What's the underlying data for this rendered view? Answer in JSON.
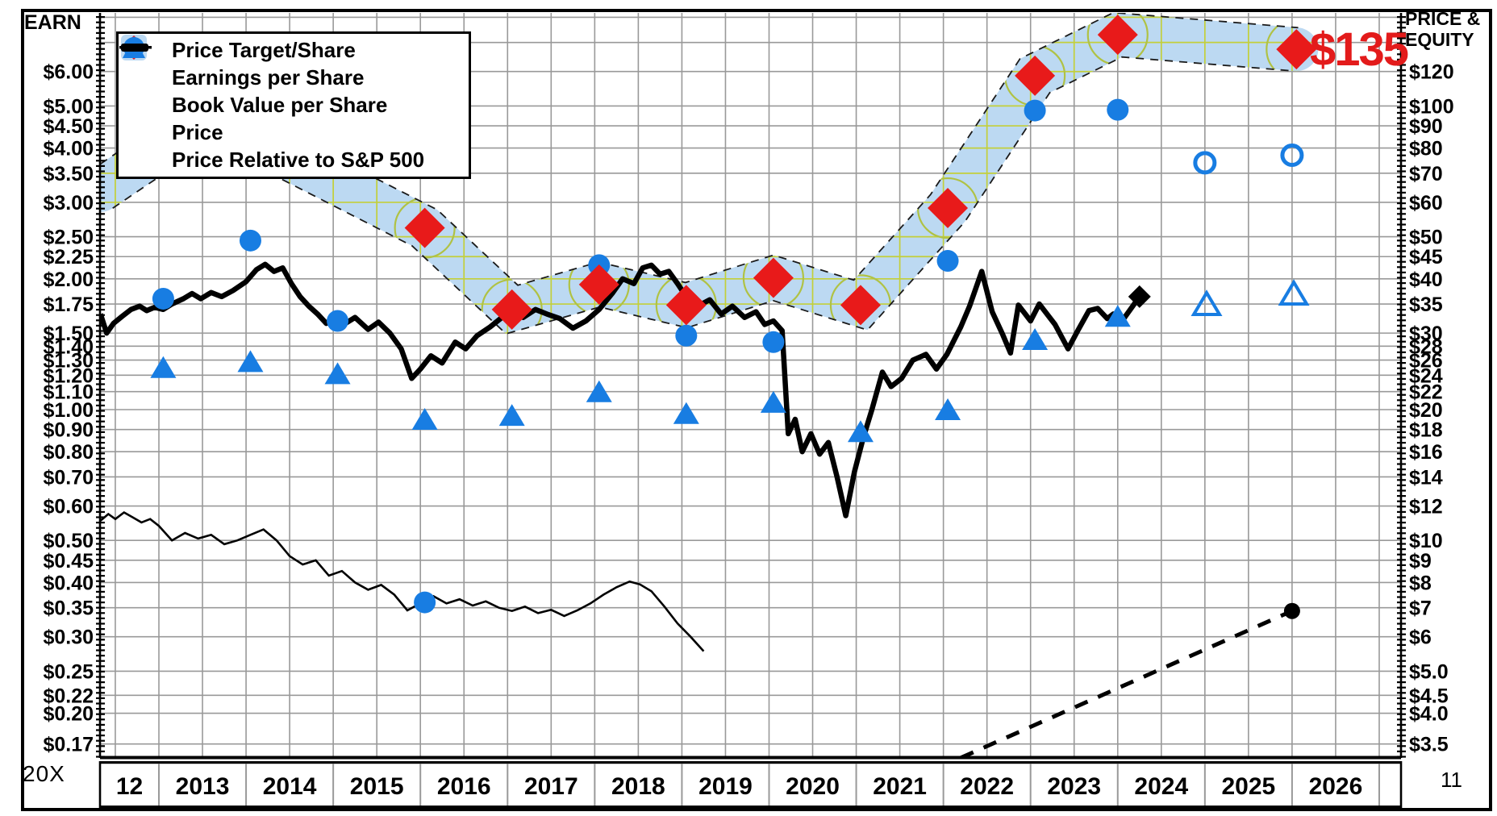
{
  "figure": {
    "left_axis_title": "EARN",
    "right_axis_title_line1": "PRICE &",
    "right_axis_title_line2": "EQUITY",
    "price_target_callout": "$135",
    "multiplier_label": "20X",
    "page_number": "11"
  },
  "legend": {
    "items": [
      {
        "icon": "price-target-diamond-icon",
        "label": "Price Target/Share"
      },
      {
        "icon": "eps-circle-icon",
        "label": "Earnings per Share"
      },
      {
        "icon": "book-value-triangle-icon",
        "label": "Book Value per Share"
      },
      {
        "icon": "price-line-icon",
        "label": "Price"
      },
      {
        "icon": "relative-line-icon",
        "label": "Price Relative to S&P 500"
      }
    ]
  },
  "chart_data": {
    "type": "line",
    "title": "",
    "scale": "log",
    "grid": true,
    "x_axis": {
      "labels": [
        "12",
        "2013",
        "2014",
        "2015",
        "2016",
        "2017",
        "2018",
        "2019",
        "2020",
        "2021",
        "2022",
        "2023",
        "2024",
        "2025",
        "2026"
      ],
      "start_year": 2012,
      "end_year": 2027
    },
    "left_axis": {
      "title": "EARN",
      "range": [
        0.158,
        8.2
      ],
      "tick_values": [
        6.0,
        5.0,
        4.5,
        4.0,
        3.5,
        3.0,
        2.5,
        2.25,
        2.0,
        1.75,
        1.5,
        1.4,
        1.3,
        1.2,
        1.1,
        1.0,
        0.9,
        0.8,
        0.7,
        0.6,
        0.5,
        0.45,
        0.4,
        0.35,
        0.3,
        0.25,
        0.22,
        0.2,
        0.17
      ],
      "tick_labels": [
        "$6.00",
        "$5.00",
        "$4.50",
        "$4.00",
        "$3.50",
        "$3.00",
        "$2.50",
        "$2.25",
        "$2.00",
        "$1.75",
        "$1.50",
        "$1.40",
        "$1.30",
        "$1.20",
        "$1.10",
        "$1.00",
        "$0.90",
        "$0.80",
        "$0.70",
        "$0.60",
        "$0.50",
        "$0.45",
        "$0.40",
        "$0.35",
        "$0.30",
        "$0.25",
        "$0.22",
        "$0.20",
        "$0.17"
      ]
    },
    "right_axis": {
      "title": "PRICE & EQUITY",
      "tick_labels": [
        "$120",
        "$100",
        "$90",
        "$80",
        "$70",
        "$60",
        "$50",
        "$45",
        "$40",
        "$35",
        "$30",
        "$28",
        "$26",
        "$24",
        "$22",
        "$20",
        "$18",
        "$16",
        "$14",
        "$12",
        "$10",
        "$9",
        "$8",
        "$7",
        "$6",
        "$5.0",
        "$4.5",
        "$4.0",
        "$3.5"
      ]
    },
    "gridline_values": [
      8,
      7,
      6,
      5,
      4.5,
      4,
      3.5,
      3,
      2.5,
      2.25,
      2,
      1.75,
      1.5,
      1.4,
      1.3,
      1.2,
      1.1,
      1,
      0.9,
      0.8,
      0.7,
      0.6,
      0.5,
      0.45,
      0.4,
      0.35,
      0.3,
      0.25,
      0.22,
      0.2,
      0.17
    ],
    "colors": {
      "band": "#bcd9f2",
      "band_grid": "#c3cf3a",
      "halo": "#b0c244",
      "marker_blue": "#187de2",
      "marker_red": "#e81a1a",
      "grid": "#999999",
      "line_black": "#000000",
      "callout_red": "#e31b1b"
    },
    "series": {
      "price_target_band": {
        "points": [
          [
            2012.33,
            3.2
          ],
          [
            2013.2,
            4.2
          ],
          [
            2014.05,
            4.2
          ],
          [
            2016.05,
            2.62
          ],
          [
            2017.05,
            1.7
          ],
          [
            2018.05,
            1.94
          ],
          [
            2019.05,
            1.74
          ],
          [
            2020.05,
            2.01
          ],
          [
            2021.05,
            1.74
          ],
          [
            2022.05,
            2.91
          ],
          [
            2023.05,
            5.87
          ],
          [
            2024.0,
            7.29
          ],
          [
            2026.05,
            6.75
          ]
        ]
      },
      "price_target": {
        "points": [
          [
            2016.05,
            2.62
          ],
          [
            2017.05,
            1.7
          ],
          [
            2018.05,
            1.94
          ],
          [
            2019.05,
            1.74
          ],
          [
            2020.05,
            2.01
          ],
          [
            2021.05,
            1.74
          ],
          [
            2022.05,
            2.91
          ],
          [
            2023.05,
            5.87
          ],
          [
            2024.0,
            7.29
          ],
          [
            2026.05,
            6.75
          ]
        ]
      },
      "earnings_per_share": {
        "points": [
          [
            2013.05,
            1.8
          ],
          [
            2014.05,
            2.45
          ],
          [
            2015.05,
            1.6
          ],
          [
            2016.05,
            0.36
          ],
          [
            2017.05,
            1.7
          ],
          [
            2018.05,
            2.15
          ],
          [
            2019.05,
            1.48
          ],
          [
            2020.05,
            1.43
          ],
          [
            2022.05,
            2.2
          ],
          [
            2023.05,
            4.88
          ],
          [
            2024.0,
            4.9
          ]
        ],
        "estimates": [
          [
            2025.0,
            3.7
          ],
          [
            2026.0,
            3.85
          ]
        ]
      },
      "book_value": {
        "points": [
          [
            2013.05,
            1.25
          ],
          [
            2014.05,
            1.29
          ],
          [
            2015.05,
            1.21
          ],
          [
            2016.05,
            0.95
          ],
          [
            2017.05,
            0.97
          ],
          [
            2018.05,
            1.1
          ],
          [
            2019.05,
            0.98
          ],
          [
            2020.05,
            1.04
          ],
          [
            2021.05,
            0.89
          ],
          [
            2022.05,
            1.0
          ],
          [
            2023.05,
            1.45
          ],
          [
            2024.0,
            1.64
          ]
        ],
        "estimates": [
          [
            2025.02,
            1.75
          ],
          [
            2026.02,
            1.85
          ]
        ]
      },
      "price": {
        "points": [
          [
            2012.33,
            1.66
          ],
          [
            2012.4,
            1.5
          ],
          [
            2012.48,
            1.58
          ],
          [
            2012.58,
            1.64
          ],
          [
            2012.68,
            1.7
          ],
          [
            2012.78,
            1.73
          ],
          [
            2012.86,
            1.69
          ],
          [
            2012.95,
            1.72
          ],
          [
            2013.05,
            1.7
          ],
          [
            2013.15,
            1.75
          ],
          [
            2013.28,
            1.8
          ],
          [
            2013.38,
            1.85
          ],
          [
            2013.48,
            1.8
          ],
          [
            2013.6,
            1.86
          ],
          [
            2013.72,
            1.82
          ],
          [
            2013.85,
            1.88
          ],
          [
            2014.0,
            1.97
          ],
          [
            2014.12,
            2.1
          ],
          [
            2014.22,
            2.16
          ],
          [
            2014.32,
            2.08
          ],
          [
            2014.42,
            2.12
          ],
          [
            2014.52,
            1.95
          ],
          [
            2014.62,
            1.82
          ],
          [
            2014.72,
            1.73
          ],
          [
            2014.82,
            1.66
          ],
          [
            2014.92,
            1.58
          ],
          [
            2015.02,
            1.63
          ],
          [
            2015.12,
            1.57
          ],
          [
            2015.25,
            1.63
          ],
          [
            2015.4,
            1.53
          ],
          [
            2015.52,
            1.59
          ],
          [
            2015.65,
            1.5
          ],
          [
            2015.78,
            1.38
          ],
          [
            2015.9,
            1.18
          ],
          [
            2016.0,
            1.24
          ],
          [
            2016.12,
            1.33
          ],
          [
            2016.25,
            1.28
          ],
          [
            2016.4,
            1.43
          ],
          [
            2016.52,
            1.38
          ],
          [
            2016.65,
            1.48
          ],
          [
            2016.8,
            1.55
          ],
          [
            2016.92,
            1.62
          ],
          [
            2017.05,
            1.7
          ],
          [
            2017.18,
            1.63
          ],
          [
            2017.32,
            1.7
          ],
          [
            2017.45,
            1.66
          ],
          [
            2017.6,
            1.62
          ],
          [
            2017.75,
            1.54
          ],
          [
            2017.9,
            1.6
          ],
          [
            2018.05,
            1.7
          ],
          [
            2018.2,
            1.85
          ],
          [
            2018.32,
            2.0
          ],
          [
            2018.45,
            1.95
          ],
          [
            2018.55,
            2.12
          ],
          [
            2018.65,
            2.15
          ],
          [
            2018.75,
            2.05
          ],
          [
            2018.85,
            2.08
          ],
          [
            2018.95,
            1.95
          ],
          [
            2019.05,
            1.82
          ],
          [
            2019.18,
            1.73
          ],
          [
            2019.32,
            1.79
          ],
          [
            2019.45,
            1.66
          ],
          [
            2019.58,
            1.73
          ],
          [
            2019.72,
            1.63
          ],
          [
            2019.85,
            1.68
          ],
          [
            2019.95,
            1.57
          ],
          [
            2020.05,
            1.6
          ],
          [
            2020.15,
            1.52
          ],
          [
            2020.22,
            0.88
          ],
          [
            2020.3,
            0.95
          ],
          [
            2020.38,
            0.8
          ],
          [
            2020.48,
            0.88
          ],
          [
            2020.58,
            0.79
          ],
          [
            2020.68,
            0.84
          ],
          [
            2020.78,
            0.7
          ],
          [
            2020.88,
            0.57
          ],
          [
            2020.98,
            0.72
          ],
          [
            2021.08,
            0.86
          ],
          [
            2021.18,
            1.0
          ],
          [
            2021.3,
            1.22
          ],
          [
            2021.4,
            1.13
          ],
          [
            2021.52,
            1.18
          ],
          [
            2021.65,
            1.3
          ],
          [
            2021.8,
            1.34
          ],
          [
            2021.92,
            1.24
          ],
          [
            2022.04,
            1.34
          ],
          [
            2022.2,
            1.55
          ],
          [
            2022.3,
            1.73
          ],
          [
            2022.44,
            2.08
          ],
          [
            2022.56,
            1.68
          ],
          [
            2022.68,
            1.49
          ],
          [
            2022.77,
            1.35
          ],
          [
            2022.86,
            1.74
          ],
          [
            2023.0,
            1.6
          ],
          [
            2023.1,
            1.75
          ],
          [
            2023.28,
            1.57
          ],
          [
            2023.43,
            1.38
          ],
          [
            2023.55,
            1.53
          ],
          [
            2023.67,
            1.69
          ],
          [
            2023.77,
            1.71
          ],
          [
            2023.88,
            1.62
          ],
          [
            2023.95,
            1.66
          ],
          [
            2024.07,
            1.62
          ],
          [
            2024.25,
            1.82
          ]
        ],
        "end_marker": [
          2024.25,
          1.82
        ]
      },
      "price_relative": {
        "points": [
          [
            2012.33,
            0.555
          ],
          [
            2012.42,
            0.575
          ],
          [
            2012.5,
            0.56
          ],
          [
            2012.6,
            0.58
          ],
          [
            2012.7,
            0.565
          ],
          [
            2012.8,
            0.55
          ],
          [
            2012.9,
            0.56
          ],
          [
            2013.0,
            0.54
          ],
          [
            2013.15,
            0.5
          ],
          [
            2013.3,
            0.52
          ],
          [
            2013.45,
            0.505
          ],
          [
            2013.6,
            0.515
          ],
          [
            2013.75,
            0.49
          ],
          [
            2013.9,
            0.5
          ],
          [
            2014.05,
            0.515
          ],
          [
            2014.2,
            0.53
          ],
          [
            2014.35,
            0.5
          ],
          [
            2014.5,
            0.46
          ],
          [
            2014.65,
            0.44
          ],
          [
            2014.8,
            0.45
          ],
          [
            2014.95,
            0.415
          ],
          [
            2015.1,
            0.425
          ],
          [
            2015.25,
            0.4
          ],
          [
            2015.4,
            0.385
          ],
          [
            2015.55,
            0.395
          ],
          [
            2015.7,
            0.375
          ],
          [
            2015.85,
            0.345
          ],
          [
            2016.0,
            0.358
          ],
          [
            2016.15,
            0.372
          ],
          [
            2016.3,
            0.358
          ],
          [
            2016.45,
            0.366
          ],
          [
            2016.6,
            0.354
          ],
          [
            2016.75,
            0.362
          ],
          [
            2016.9,
            0.35
          ],
          [
            2017.05,
            0.344
          ],
          [
            2017.2,
            0.352
          ],
          [
            2017.35,
            0.34
          ],
          [
            2017.5,
            0.346
          ],
          [
            2017.65,
            0.335
          ],
          [
            2017.8,
            0.345
          ],
          [
            2017.95,
            0.358
          ],
          [
            2018.1,
            0.375
          ],
          [
            2018.25,
            0.39
          ],
          [
            2018.4,
            0.402
          ],
          [
            2018.52,
            0.396
          ],
          [
            2018.65,
            0.382
          ],
          [
            2018.8,
            0.352
          ],
          [
            2018.95,
            0.322
          ],
          [
            2019.1,
            0.3
          ],
          [
            2019.25,
            0.278
          ]
        ]
      },
      "projection_dashed": {
        "points": [
          [
            2022.2,
            0.158
          ],
          [
            2026.0,
            0.344
          ]
        ],
        "end_dot": [
          2026.0,
          0.344
        ]
      }
    }
  }
}
